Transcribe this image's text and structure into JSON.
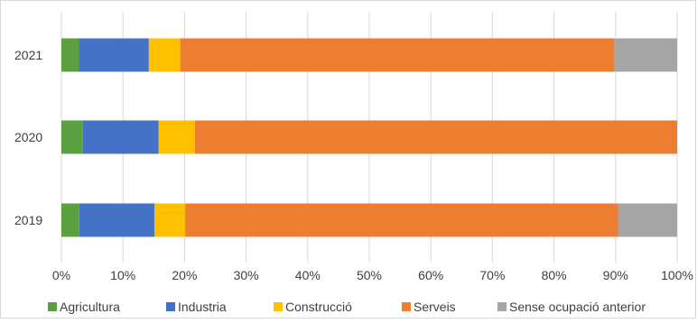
{
  "chart_data": {
    "type": "bar",
    "orientation": "horizontal",
    "stacked": "percent",
    "title": "",
    "xlabel": "",
    "ylabel": "",
    "categories": [
      "2019",
      "2020",
      "2021"
    ],
    "xlim": [
      0,
      100
    ],
    "x_ticks": [
      "0%",
      "10%",
      "20%",
      "30%",
      "40%",
      "50%",
      "60%",
      "70%",
      "80%",
      "90%",
      "100%"
    ],
    "grid": true,
    "legend_position": "bottom",
    "series": [
      {
        "name": "Agricultura",
        "color": "#5aa040",
        "values": [
          2.9,
          3.5,
          2.8
        ]
      },
      {
        "name": "Industria",
        "color": "#4472c4",
        "values": [
          12.2,
          12.3,
          11.4
        ]
      },
      {
        "name": "Construcció",
        "color": "#ffc000",
        "values": [
          5.0,
          5.9,
          5.1
        ]
      },
      {
        "name": "Serveis",
        "color": "#ed7d31",
        "values": [
          70.3,
          78.3,
          70.5
        ]
      },
      {
        "name": "Sense ocupació anterior",
        "color": "#a5a5a5",
        "values": [
          9.6,
          0,
          10.2
        ]
      }
    ]
  }
}
